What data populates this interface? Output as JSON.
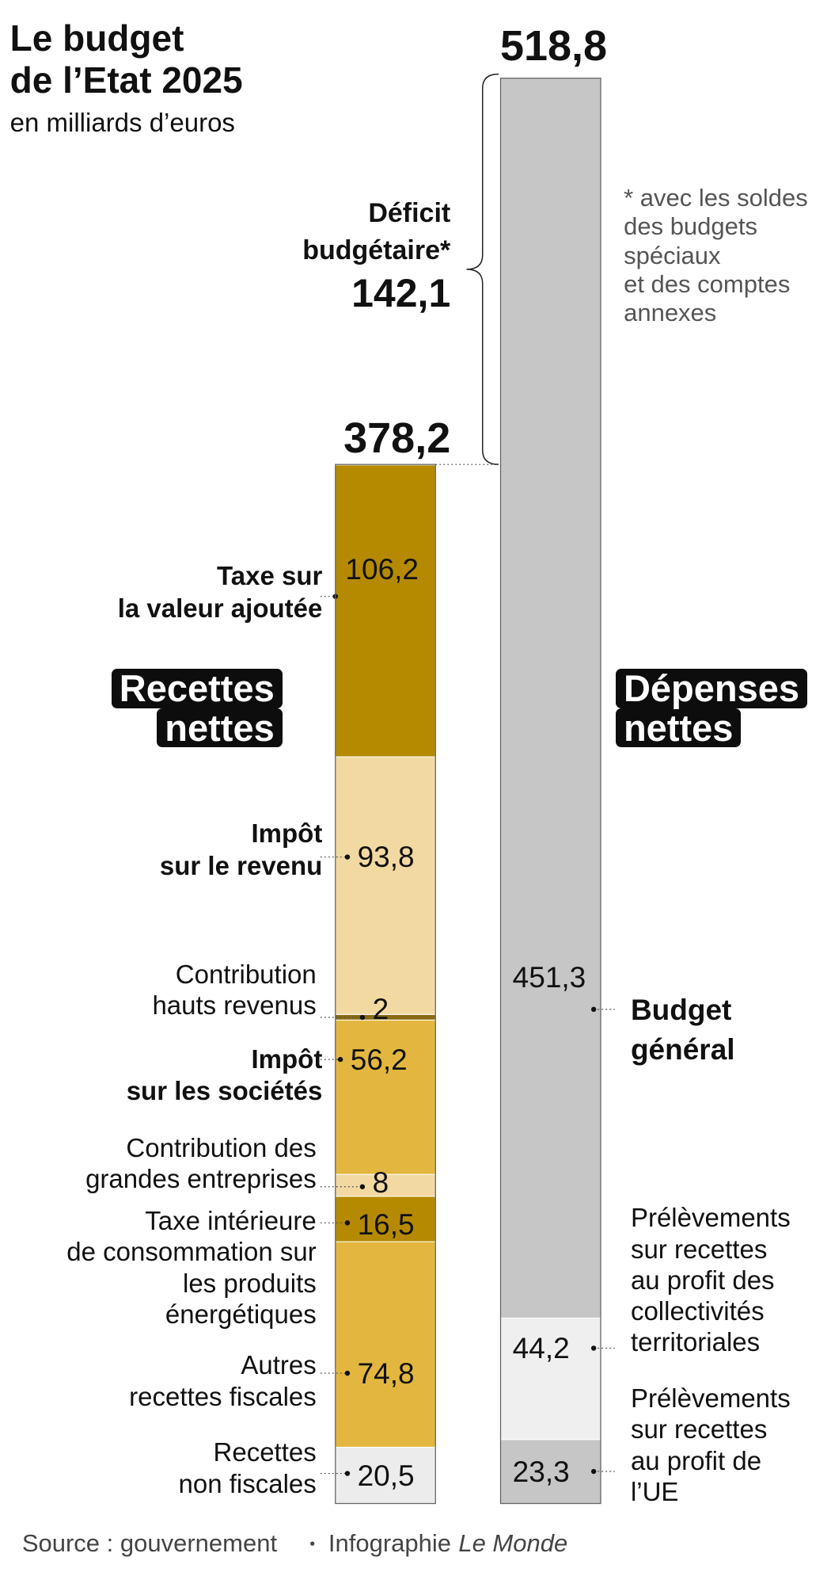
{
  "chart_data": {
    "type": "stacked_bar",
    "title": [
      "Le budget",
      "de l’Etat 2025"
    ],
    "subtitle": "en milliards d’euros",
    "series": [
      {
        "name": [
          "Recettes",
          "nettes"
        ],
        "total": 378.2,
        "total_label": "378,2",
        "segments": [
          {
            "label": [
              "Recettes",
              "non fiscales"
            ],
            "value": 20.5,
            "value_label": "20,5",
            "color": "#ececec",
            "bold": false
          },
          {
            "label": [
              "Autres",
              "recettes fiscales"
            ],
            "value": 74.8,
            "value_label": "74,8",
            "color": "#e3b73f",
            "bold": false
          },
          {
            "label": [
              "Taxe intérieure",
              "de consommation sur",
              "les produits",
              "énergétiques"
            ],
            "value": 16.5,
            "value_label": "16,5",
            "color": "#b58a00",
            "bold": false
          },
          {
            "label": [
              "Contribution des",
              "grandes entreprises"
            ],
            "value": 8,
            "color": "#f2d9a1",
            "bold": false
          },
          {
            "label": [
              "Impôt",
              "sur les sociétés"
            ],
            "value": 56.2,
            "value_label": "56,2",
            "color": "#e3b73f",
            "bold": true
          },
          {
            "label": [
              "Contribution",
              "hauts revenus"
            ],
            "value": 2,
            "color": "#8a6a10",
            "bold": false
          },
          {
            "label": [
              "Impôt",
              "sur le revenu"
            ],
            "value": 93.8,
            "value_label": "93,8",
            "color": "#f2d9a1",
            "bold": true
          },
          {
            "label": [
              "Taxe sur",
              "la valeur ajoutée"
            ],
            "value": 106.2,
            "value_label": "106,2",
            "color": "#b58a00",
            "bold": true
          }
        ]
      },
      {
        "name": [
          "Dépenses",
          "nettes"
        ],
        "total": 518.8,
        "total_label": "518,8",
        "segments": [
          {
            "label": [
              "Prélèvements",
              "sur recettes",
              "au profit de",
              "l’UE"
            ],
            "value": 23.3,
            "value_label": "23,3",
            "color": "#c6c6c6",
            "bold": false
          },
          {
            "label": [
              "Prélèvements",
              "sur recettes",
              "au profit des",
              "collectivités",
              "territoriales"
            ],
            "value": 44.2,
            "value_label": "44,2",
            "color": "#efefef",
            "bold": false
          },
          {
            "label": [
              "Budget",
              "général"
            ],
            "value": 451.3,
            "value_label": "451,3",
            "color": "#c6c6c6",
            "bold": true
          }
        ]
      }
    ],
    "deficit": {
      "label": [
        "Déficit",
        "budgétaire*"
      ],
      "value": 142.1,
      "value_label": "142,1"
    },
    "note": [
      "* avec les soldes",
      "des budgets",
      "spéciaux",
      "et des comptes",
      "annexes"
    ],
    "source": "Source : gouvernement",
    "credit": "Infographie",
    "credit_name": "Le Monde"
  }
}
